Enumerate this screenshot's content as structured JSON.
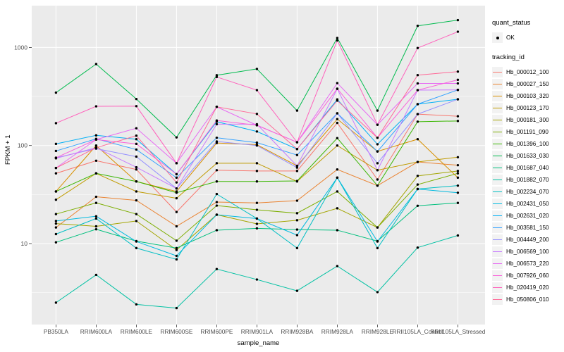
{
  "chart_data": {
    "type": "line",
    "xlabel": "sample_name",
    "ylabel": "FPKM + 1",
    "y_scale": "log10",
    "y_ticks": [
      10,
      100,
      1000
    ],
    "y_minor_ticks": [
      3.162,
      31.62,
      316.2
    ],
    "ylim": [
      1.5,
      2700
    ],
    "grid": "on",
    "legend_position": "right",
    "point_shape": "filled-circle",
    "categories": [
      "PB350LA",
      "RRIM600LA",
      "RRIM600LE",
      "RRIM600SE",
      "RRIM600PE",
      "RRIM901LA",
      "RRIM928BA",
      "RRIM928LA",
      "RRIM928LE",
      "RRII105LA_Control",
      "RRII105LA_Stressed"
    ],
    "legend": {
      "quant_status_title": "quant_status",
      "quant_status_items": [
        "OK"
      ],
      "tracking_id_title": "tracking_id"
    },
    "series": [
      {
        "name": "Hb_000012_100",
        "color": "#F8766D",
        "values": [
          52,
          70,
          57,
          21,
          56,
          55,
          55,
          170,
          45,
          209,
          199
        ]
      },
      {
        "name": "Hb_000027_150",
        "color": "#EA8331",
        "values": [
          14.6,
          30,
          27.6,
          15,
          26.5,
          26,
          27.4,
          57,
          39,
          68,
          63
        ]
      },
      {
        "name": "Hb_000103_320",
        "color": "#D89000",
        "values": [
          34,
          100,
          43,
          34,
          106,
          102,
          62,
          186,
          87,
          116,
          47
        ]
      },
      {
        "name": "Hb_000123_170",
        "color": "#C09B00",
        "values": [
          28,
          52,
          34,
          29,
          66,
          66,
          43,
          100,
          56,
          68,
          76
        ]
      },
      {
        "name": "Hb_000181_300",
        "color": "#A3A500",
        "values": [
          16,
          15,
          17,
          8.6,
          19.7,
          15.9,
          17.3,
          22.9,
          14.6,
          49,
          55
        ]
      },
      {
        "name": "Hb_001191_090",
        "color": "#7CAE00",
        "values": [
          20,
          26,
          20,
          10.7,
          24.4,
          22.1,
          20.4,
          34,
          14.6,
          40,
          52
        ]
      },
      {
        "name": "Hb_001396_100",
        "color": "#39B600",
        "values": [
          34,
          52,
          43,
          33,
          43,
          43,
          43.5,
          119,
          39,
          175,
          178
        ]
      },
      {
        "name": "Hb_001633_030",
        "color": "#00BB4E",
        "values": [
          346,
          677,
          298,
          121,
          521,
          604,
          227,
          1250,
          227,
          1660,
          1900
        ]
      },
      {
        "name": "Hb_001687_040",
        "color": "#00BF7D",
        "values": [
          10.3,
          14,
          10.6,
          9,
          13.7,
          14.3,
          13.9,
          13.7,
          10.6,
          24.3,
          26
        ]
      },
      {
        "name": "Hb_001882_070",
        "color": "#00C1A3",
        "values": [
          2.5,
          4.8,
          2.4,
          2.2,
          5.5,
          4.3,
          3.3,
          5.9,
          3.2,
          9.1,
          12.1
        ]
      },
      {
        "name": "Hb_002234_070",
        "color": "#00BFC4",
        "values": [
          12.5,
          18,
          9,
          6.9,
          32,
          18,
          9,
          47,
          9,
          36,
          39
        ]
      },
      {
        "name": "Hb_002431_050",
        "color": "#00BAE0",
        "values": [
          17,
          19,
          10.5,
          7.5,
          19.7,
          18,
          12.2,
          47,
          10.5,
          36,
          33
        ]
      },
      {
        "name": "Hb_002631_020",
        "color": "#00B0F6",
        "values": [
          104,
          127,
          116,
          51,
          175,
          139,
          92,
          295,
          103,
          264,
          296
        ]
      },
      {
        "name": "Hb_003581_150",
        "color": "#35A2FF",
        "values": [
          88,
          117,
          91,
          47,
          120,
          107,
          80,
          213,
          87,
          264,
          369
        ]
      },
      {
        "name": "Hb_004449_200",
        "color": "#9590FF",
        "values": [
          75,
          93,
          77,
          36.5,
          110,
          100,
          59.5,
          213,
          66,
          209,
          296
        ]
      },
      {
        "name": "Hb_006569_100",
        "color": "#C77CFF",
        "values": [
          74,
          95,
          60,
          36.5,
          165,
          165,
          62,
          378,
          56,
          367,
          369
        ]
      },
      {
        "name": "Hb_006573_220",
        "color": "#E76BF3",
        "values": [
          59,
          115,
          150,
          66,
          248,
          161,
          108,
          433,
          163,
          430,
          430
        ]
      },
      {
        "name": "Hb_007926_060",
        "color": "#FA62DB",
        "values": [
          75,
          115,
          104,
          51,
          180,
          161,
          108,
          380,
          120,
          367,
          468
        ]
      },
      {
        "name": "Hb_020419_020",
        "color": "#FF62BC",
        "values": [
          169,
          251,
          252,
          66,
          500,
          367,
          108,
          1180,
          163,
          986,
          1447
        ]
      },
      {
        "name": "Hb_050806_010",
        "color": "#FF6A98",
        "values": [
          59,
          95,
          126,
          42,
          248,
          210,
          92,
          287,
          120,
          522,
          567
        ]
      }
    ]
  },
  "colors": {
    "panel_bg": "#EBEBEB",
    "grid_major": "#FFFFFF",
    "grid_minor": "#F5F5F5",
    "tick_label": "#4D4D4D",
    "tick_mark": "#333333",
    "point": "#000000",
    "legend_key_bg": "#F2F2F2"
  }
}
